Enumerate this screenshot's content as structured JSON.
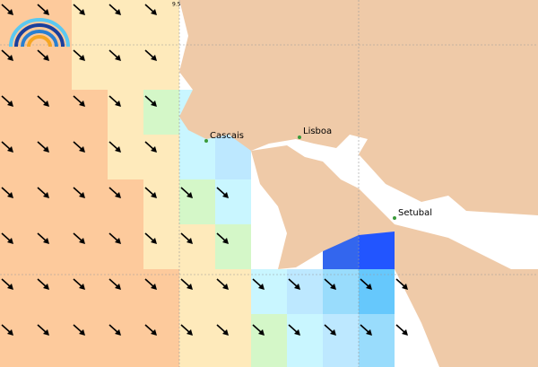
{
  "map": {
    "grid_label": "9.5",
    "places": [
      {
        "name": "Cascais"
      },
      {
        "name": "Lisboa"
      },
      {
        "name": "Setubal"
      }
    ]
  }
}
